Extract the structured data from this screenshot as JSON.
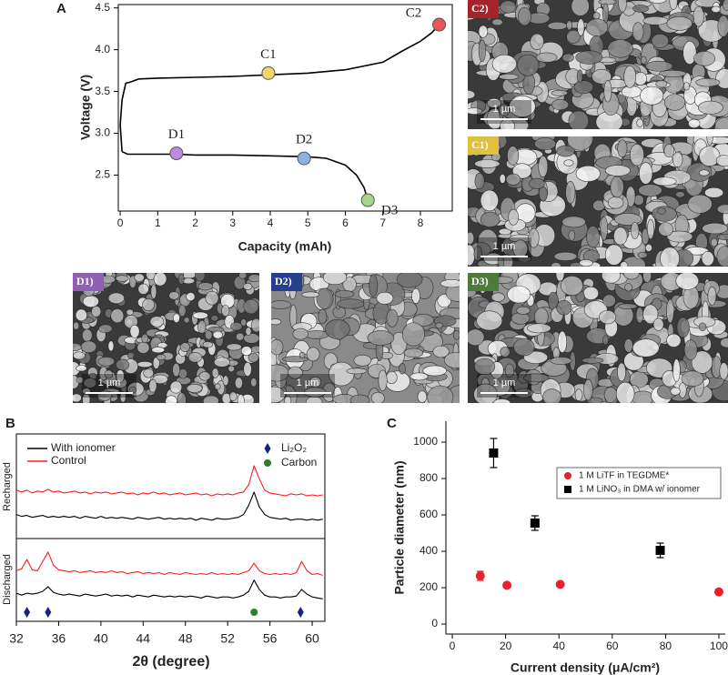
{
  "chart_data": [
    {
      "type": "line",
      "panel_label": "A",
      "xlabel": "Capacity (mAh)",
      "ylabel": "Voltage (V)",
      "xlim": [
        -0.05,
        8.85
      ],
      "ylim": [
        2.07,
        4.54
      ],
      "xticks": [
        0,
        1,
        2,
        3,
        4,
        5,
        6,
        7,
        8
      ],
      "yticks": [
        2.5,
        {
          "value": 3,
          "label": "3.0"
        },
        3.5,
        {
          "value": 4,
          "label": "4.0"
        },
        4.5
      ],
      "series": [
        {
          "color": "#000000",
          "x": [
            0.05,
            0.2,
            0.5,
            1,
            1.5,
            2,
            3,
            4,
            5,
            5.5,
            6,
            6.3,
            6.5,
            6.6
          ],
          "values": [
            2.78,
            2.75,
            2.75,
            2.75,
            2.75,
            2.74,
            2.74,
            2.73,
            2.72,
            2.7,
            2.62,
            2.5,
            2.35,
            2.2
          ]
        },
        {
          "color": "#000000",
          "x": [
            0.05,
            0,
            0.05,
            0.15,
            0.25,
            0.5,
            1,
            2,
            3,
            4,
            5,
            6,
            7,
            7.5,
            8,
            8.3,
            8.5
          ],
          "values": [
            2.78,
            3.1,
            3.4,
            3.6,
            3.61,
            3.65,
            3.66,
            3.67,
            3.68,
            3.7,
            3.72,
            3.76,
            3.85,
            3.98,
            4.1,
            4.2,
            4.3
          ]
        }
      ],
      "markers": [
        {
          "label": "C1",
          "x": 3.95,
          "y": 3.72,
          "color": "#f5d66a"
        },
        {
          "label": "C2",
          "x": 8.5,
          "y": 4.3,
          "color": "#e8555a"
        },
        {
          "label": "D1",
          "x": 1.5,
          "y": 2.76,
          "color": "#b98ce0"
        },
        {
          "label": "D2",
          "x": 4.9,
          "y": 2.7,
          "color": "#8fb0e0"
        },
        {
          "label": "D3",
          "x": 6.6,
          "y": 2.2,
          "color": "#a6d68c"
        }
      ]
    },
    {
      "type": "line",
      "panel_label": "B",
      "xlabel": "2θ (degree)",
      "xlim": [
        32,
        61.2
      ],
      "ylim": [
        0,
        10
      ],
      "xticks": [
        32,
        36,
        40,
        44,
        48,
        52,
        56,
        60
      ],
      "groups": [
        "Recharged",
        "Discharged"
      ],
      "x": [
        32,
        32.5,
        33,
        33.5,
        34,
        34.5,
        35,
        35.5,
        36,
        36.5,
        37,
        37.5,
        38,
        38.5,
        39,
        39.5,
        40,
        40.5,
        41,
        41.5,
        42,
        42.5,
        43,
        43.5,
        44,
        44.5,
        45,
        45.5,
        46,
        46.5,
        47,
        47.5,
        48,
        48.5,
        49,
        49.5,
        50,
        50.5,
        51,
        51.5,
        52,
        52.5,
        53,
        53.5,
        54,
        54.5,
        55,
        55.5,
        56,
        56.5,
        57,
        57.5,
        58,
        58.5,
        59,
        59.5,
        60,
        60.5,
        61
      ],
      "series": [
        {
          "name": "With ionomer",
          "color": "#000000",
          "values": [
            [
              5.7,
              5.6,
              5.65,
              5.55,
              5.6,
              5.65,
              5.55,
              5.6,
              5.55,
              5.6,
              5.55,
              5.6,
              5.5,
              5.6,
              5.55,
              5.5,
              5.6,
              5.5,
              5.55,
              5.5,
              5.55,
              5.5,
              5.45,
              5.55,
              5.5,
              5.45,
              5.5,
              5.55,
              5.45,
              5.5,
              5.45,
              5.5,
              5.45,
              5.5,
              5.4,
              5.5,
              5.45,
              5.4,
              5.5,
              5.45,
              5.45,
              5.5,
              5.55,
              5.7,
              6.2,
              6.9,
              6.1,
              5.7,
              5.55,
              5.5,
              5.45,
              5.5,
              5.4,
              5.45,
              5.45,
              5.4,
              5.45,
              5.4,
              5.45
            ],
            [
              1.5,
              1.4,
              1.5,
              1.45,
              1.5,
              1.6,
              1.85,
              1.55,
              1.45,
              1.4,
              1.45,
              1.4,
              1.35,
              1.45,
              1.4,
              1.35,
              1.4,
              1.45,
              1.35,
              1.4,
              1.35,
              1.4,
              1.3,
              1.4,
              1.35,
              1.3,
              1.4,
              1.35,
              1.3,
              1.35,
              1.3,
              1.35,
              1.3,
              1.35,
              1.3,
              1.25,
              1.35,
              1.3,
              1.25,
              1.3,
              1.3,
              1.25,
              1.3,
              1.4,
              1.6,
              2.2,
              1.7,
              1.4,
              1.3,
              1.3,
              1.25,
              1.3,
              1.3,
              1.35,
              1.7,
              1.45,
              1.3,
              1.25,
              1.2
            ]
          ]
        },
        {
          "name": "Control",
          "color": "#ff1a1a",
          "values": [
            [
              7.0,
              6.9,
              7.0,
              6.85,
              6.95,
              6.9,
              7.05,
              6.9,
              6.95,
              6.85,
              6.9,
              6.95,
              6.85,
              6.9,
              6.8,
              6.9,
              6.85,
              6.9,
              6.8,
              6.85,
              6.9,
              6.8,
              6.85,
              6.75,
              6.85,
              6.8,
              6.9,
              6.8,
              6.85,
              6.75,
              6.8,
              6.85,
              6.75,
              6.8,
              6.85,
              6.75,
              6.8,
              6.7,
              6.8,
              6.75,
              6.8,
              6.75,
              6.85,
              6.9,
              7.3,
              8.3,
              7.6,
              7.0,
              6.85,
              6.8,
              6.75,
              6.7,
              6.8,
              6.75,
              6.8,
              6.7,
              6.75,
              6.7,
              6.75
            ],
            [
              2.7,
              2.8,
              3.3,
              2.75,
              2.7,
              3.2,
              3.7,
              3.0,
              2.75,
              2.7,
              2.65,
              2.7,
              2.6,
              2.65,
              2.7,
              2.6,
              2.65,
              2.6,
              2.7,
              2.6,
              2.65,
              2.55,
              2.6,
              2.65,
              2.55,
              2.6,
              2.55,
              2.6,
              2.5,
              2.6,
              2.55,
              2.5,
              2.6,
              2.55,
              2.5,
              2.55,
              2.5,
              2.6,
              2.5,
              2.55,
              2.5,
              2.55,
              2.5,
              2.6,
              2.7,
              3.1,
              2.7,
              2.55,
              2.5,
              2.55,
              2.5,
              2.55,
              2.5,
              2.6,
              3.2,
              2.7,
              2.5,
              2.55,
              2.45
            ]
          ]
        }
      ],
      "markers": [
        {
          "name": "Li₂O₂",
          "color": "#1a237e",
          "shape": "diamond",
          "x": [
            33,
            35,
            58.9
          ]
        },
        {
          "name": "Carbon",
          "color": "#2e7d32",
          "shape": "circle",
          "x": [
            54.5
          ]
        }
      ]
    },
    {
      "type": "scatter",
      "panel_label": "C",
      "xlabel": "Current density (μA/cm²)",
      "ylabel": "Particle diameter (nm)",
      "xlim": [
        -2.4,
        102.4
      ],
      "ylim": [
        -55,
        1115
      ],
      "xticks": [
        0,
        20,
        40,
        60,
        80,
        100
      ],
      "yticks": [
        0,
        200,
        400,
        600,
        800,
        1000
      ],
      "series": [
        {
          "name": "1 M LiTF in TEGDME*",
          "color": "#e8212a",
          "shape": "circle",
          "x": [
            10.5,
            20.5,
            40.5,
            100
          ],
          "values": [
            265,
            213,
            218,
            177
          ],
          "errors": [
            25,
            null,
            null,
            null
          ]
        },
        {
          "name": "1 M LiNO₃ in DMA w/ ionomer",
          "color": "#000000",
          "shape": "square",
          "x": [
            15.5,
            31,
            78
          ],
          "values": [
            940,
            555,
            405
          ],
          "errors": [
            80,
            40,
            40
          ]
        }
      ]
    }
  ],
  "images": [
    {
      "label": "C2)",
      "scale_bar": "1 µm"
    },
    {
      "label": "C1)",
      "scale_bar": "1 µm"
    },
    {
      "label": "D1)",
      "scale_bar": "1 µm"
    },
    {
      "label": "D2)",
      "scale_bar": "1 µm"
    },
    {
      "label": "D3)",
      "scale_bar": "1 µm"
    }
  ]
}
